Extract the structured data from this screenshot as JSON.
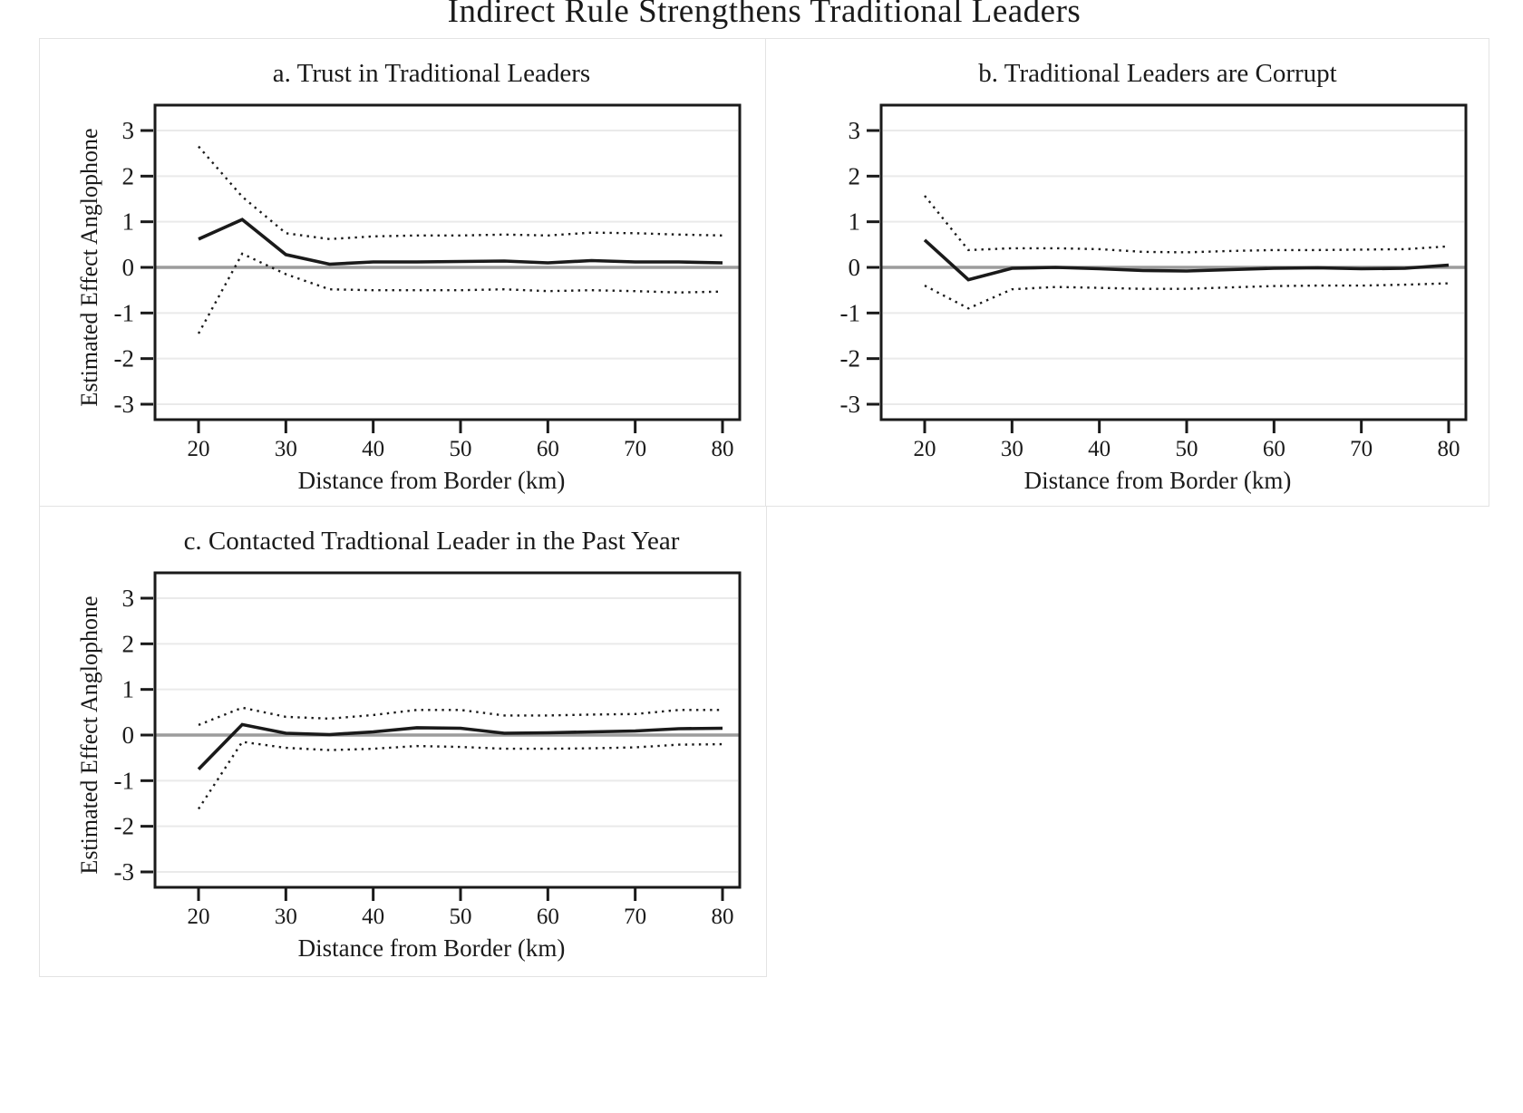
{
  "figure_title": "Indirect Rule Strengthens Traditional Leaders",
  "colors": {
    "line": "#1a1a1a",
    "dotted_line": "#1a1a1a",
    "grid": "#eaeaea",
    "zero_line": "#9c9c9c",
    "frame": "#1a1a1a",
    "panel_border": "#e3e3e3",
    "background": "#ffffff"
  },
  "chart_data": [
    {
      "id": "a",
      "type": "line",
      "title": "a. Trust in Traditional Leaders",
      "xlabel": "Distance from Border (km)",
      "ylabel": "Estimated Effect Anglophone",
      "x": [
        20,
        25,
        30,
        35,
        40,
        45,
        50,
        55,
        60,
        65,
        70,
        75,
        80
      ],
      "xticks": [
        20,
        30,
        40,
        50,
        60,
        70,
        80
      ],
      "yticks": [
        3,
        2,
        1,
        0,
        -1,
        -2,
        -3
      ],
      "ylim": [
        -3.55,
        3.55
      ],
      "grid": true,
      "legend": "none",
      "zero_line": true,
      "series": [
        {
          "name": "estimate",
          "style": "solid",
          "values": [
            0.62,
            1.05,
            0.28,
            0.07,
            0.12,
            0.12,
            0.13,
            0.14,
            0.1,
            0.15,
            0.12,
            0.12,
            0.1
          ]
        },
        {
          "name": "ci-upper",
          "style": "dotted",
          "values": [
            2.65,
            1.55,
            0.75,
            0.62,
            0.68,
            0.7,
            0.7,
            0.72,
            0.7,
            0.76,
            0.75,
            0.72,
            0.7
          ]
        },
        {
          "name": "ci-lower",
          "style": "dotted",
          "values": [
            -1.45,
            0.3,
            -0.15,
            -0.48,
            -0.5,
            -0.5,
            -0.5,
            -0.48,
            -0.52,
            -0.5,
            -0.52,
            -0.55,
            -0.53
          ]
        }
      ]
    },
    {
      "id": "b",
      "type": "line",
      "title": "b. Traditional Leaders are Corrupt",
      "xlabel": "Distance from Border (km)",
      "ylabel": "",
      "x": [
        20,
        25,
        30,
        35,
        40,
        45,
        50,
        55,
        60,
        65,
        70,
        75,
        80
      ],
      "xticks": [
        20,
        30,
        40,
        50,
        60,
        70,
        80
      ],
      "yticks": [
        3,
        2,
        1,
        0,
        -1,
        -2,
        -3
      ],
      "ylim": [
        -3.55,
        3.55
      ],
      "grid": true,
      "legend": "none",
      "zero_line": true,
      "series": [
        {
          "name": "estimate",
          "style": "solid",
          "values": [
            0.6,
            -0.27,
            -0.02,
            0.0,
            -0.03,
            -0.07,
            -0.08,
            -0.05,
            -0.02,
            -0.01,
            -0.03,
            -0.02,
            0.05
          ]
        },
        {
          "name": "ci-upper",
          "style": "dotted",
          "values": [
            1.57,
            0.38,
            0.42,
            0.42,
            0.4,
            0.34,
            0.33,
            0.36,
            0.38,
            0.38,
            0.39,
            0.4,
            0.46
          ]
        },
        {
          "name": "ci-lower",
          "style": "dotted",
          "values": [
            -0.4,
            -0.9,
            -0.48,
            -0.43,
            -0.45,
            -0.47,
            -0.47,
            -0.44,
            -0.41,
            -0.4,
            -0.4,
            -0.38,
            -0.35
          ]
        }
      ]
    },
    {
      "id": "c",
      "type": "line",
      "title": "c. Contacted Tradtional Leader in the Past Year",
      "xlabel": "Distance from Border (km)",
      "ylabel": "Estimated Effect Anglophone",
      "x": [
        20,
        25,
        30,
        35,
        40,
        45,
        50,
        55,
        60,
        65,
        70,
        75,
        80
      ],
      "xticks": [
        20,
        30,
        40,
        50,
        60,
        70,
        80
      ],
      "yticks": [
        3,
        2,
        1,
        0,
        -1,
        -2,
        -3
      ],
      "ylim": [
        -3.55,
        3.55
      ],
      "grid": true,
      "legend": "none",
      "zero_line": true,
      "series": [
        {
          "name": "estimate",
          "style": "solid",
          "values": [
            -0.75,
            0.23,
            0.04,
            0.01,
            0.07,
            0.16,
            0.15,
            0.04,
            0.05,
            0.07,
            0.09,
            0.14,
            0.15
          ]
        },
        {
          "name": "ci-upper",
          "style": "dotted",
          "values": [
            0.22,
            0.6,
            0.4,
            0.36,
            0.44,
            0.55,
            0.55,
            0.43,
            0.43,
            0.45,
            0.46,
            0.55,
            0.55
          ]
        },
        {
          "name": "ci-lower",
          "style": "dotted",
          "values": [
            -1.62,
            -0.15,
            -0.28,
            -0.33,
            -0.3,
            -0.24,
            -0.26,
            -0.3,
            -0.3,
            -0.29,
            -0.27,
            -0.21,
            -0.2
          ]
        }
      ]
    }
  ]
}
